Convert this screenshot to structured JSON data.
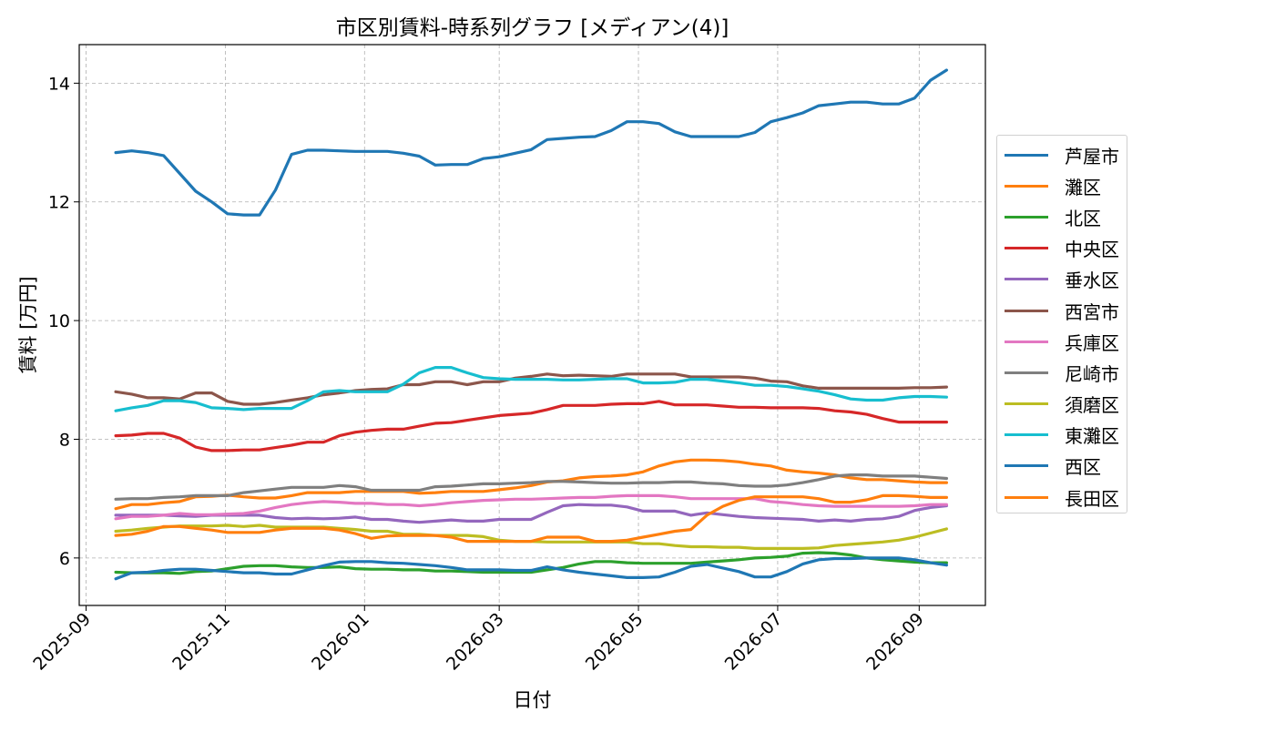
{
  "chart_data": {
    "type": "line",
    "title": "市区別賃料-時系列グラフ [メディアン(4)]",
    "xlabel": "日付",
    "ylabel": "賃料 [万円]",
    "xlim": [
      "2025-08-29",
      "2026-09-30"
    ],
    "ylim": [
      5.2,
      14.65
    ],
    "xticks": [
      "2025-09",
      "2025-11",
      "2026-01",
      "2026-03",
      "2026-05",
      "2026-07",
      "2026-09"
    ],
    "yticks": [
      6,
      8,
      10,
      12,
      14
    ],
    "grid": true,
    "legend_position": "right",
    "x": [
      "2025-09-14",
      "2025-09-21",
      "2025-09-28",
      "2025-10-05",
      "2025-10-12",
      "2025-10-19",
      "2025-10-26",
      "2025-11-02",
      "2025-11-09",
      "2025-11-16",
      "2025-11-23",
      "2025-11-30",
      "2025-12-07",
      "2025-12-14",
      "2025-12-21",
      "2025-12-28",
      "2026-01-04",
      "2026-01-11",
      "2026-01-18",
      "2026-01-25",
      "2026-02-01",
      "2026-02-08",
      "2026-02-15",
      "2026-02-22",
      "2026-03-01",
      "2026-03-08",
      "2026-03-15",
      "2026-03-22",
      "2026-03-29",
      "2026-04-05",
      "2026-04-12",
      "2026-04-19",
      "2026-04-26",
      "2026-05-03",
      "2026-05-10",
      "2026-05-17",
      "2026-05-24",
      "2026-05-31",
      "2026-06-07",
      "2026-06-14",
      "2026-06-21",
      "2026-06-28",
      "2026-07-05",
      "2026-07-12",
      "2026-07-19",
      "2026-07-26",
      "2026-08-02",
      "2026-08-09",
      "2026-08-16",
      "2026-08-23",
      "2026-08-30",
      "2026-09-06",
      "2026-09-13"
    ],
    "series": [
      {
        "name": "芦屋市",
        "color": "#1f77b4",
        "values": [
          12.83,
          12.86,
          12.83,
          12.78,
          12.48,
          12.18,
          12.0,
          11.8,
          11.78,
          11.78,
          12.2,
          12.8,
          12.87,
          12.87,
          12.86,
          12.85,
          12.85,
          12.85,
          12.82,
          12.77,
          12.62,
          12.63,
          12.63,
          12.73,
          12.76,
          12.82,
          12.88,
          13.05,
          13.07,
          13.09,
          13.1,
          13.2,
          13.35,
          13.35,
          13.32,
          13.18,
          13.1,
          13.1,
          13.1,
          13.1,
          13.17,
          13.35,
          13.42,
          13.5,
          13.62,
          13.65,
          13.68,
          13.68,
          13.65,
          13.65,
          13.75,
          14.05,
          14.22
        ]
      },
      {
        "name": "灘区",
        "color": "#ff7f0e",
        "values": [
          6.83,
          6.9,
          6.9,
          6.93,
          6.95,
          7.03,
          7.04,
          7.06,
          7.03,
          7.01,
          7.01,
          7.05,
          7.1,
          7.1,
          7.1,
          7.12,
          7.12,
          7.12,
          7.12,
          7.09,
          7.1,
          7.12,
          7.12,
          7.12,
          7.15,
          7.18,
          7.22,
          7.28,
          7.3,
          7.35,
          7.37,
          7.38,
          7.4,
          7.45,
          7.55,
          7.62,
          7.65,
          7.65,
          7.64,
          7.62,
          7.58,
          7.55,
          7.48,
          7.45,
          7.43,
          7.4,
          7.35,
          7.32,
          7.32,
          7.3,
          7.28,
          7.27,
          7.27
        ]
      },
      {
        "name": "北区",
        "color": "#2ca02c",
        "values": [
          5.76,
          5.75,
          5.75,
          5.75,
          5.74,
          5.77,
          5.78,
          5.82,
          5.86,
          5.87,
          5.87,
          5.85,
          5.84,
          5.84,
          5.85,
          5.82,
          5.81,
          5.81,
          5.8,
          5.8,
          5.78,
          5.78,
          5.77,
          5.76,
          5.76,
          5.76,
          5.76,
          5.8,
          5.84,
          5.9,
          5.94,
          5.94,
          5.92,
          5.91,
          5.91,
          5.91,
          5.91,
          5.93,
          5.95,
          5.97,
          6.0,
          6.01,
          6.03,
          6.08,
          6.09,
          6.08,
          6.05,
          6.0,
          5.97,
          5.95,
          5.93,
          5.92,
          5.92
        ]
      },
      {
        "name": "中央区",
        "color": "#d62728",
        "values": [
          8.06,
          8.07,
          8.1,
          8.1,
          8.02,
          7.87,
          7.81,
          7.81,
          7.82,
          7.82,
          7.86,
          7.9,
          7.95,
          7.95,
          8.06,
          8.12,
          8.15,
          8.17,
          8.17,
          8.22,
          8.27,
          8.28,
          8.32,
          8.36,
          8.4,
          8.42,
          8.44,
          8.5,
          8.57,
          8.57,
          8.57,
          8.59,
          8.6,
          8.6,
          8.64,
          8.58,
          8.58,
          8.58,
          8.56,
          8.54,
          8.54,
          8.53,
          8.53,
          8.53,
          8.52,
          8.48,
          8.46,
          8.42,
          8.35,
          8.29,
          8.29,
          8.29,
          8.29
        ]
      },
      {
        "name": "垂水区",
        "color": "#9467bd",
        "values": [
          6.72,
          6.72,
          6.72,
          6.72,
          6.71,
          6.7,
          6.72,
          6.72,
          6.72,
          6.72,
          6.68,
          6.66,
          6.67,
          6.66,
          6.67,
          6.69,
          6.65,
          6.65,
          6.62,
          6.6,
          6.62,
          6.64,
          6.62,
          6.62,
          6.65,
          6.65,
          6.65,
          6.77,
          6.88,
          6.9,
          6.89,
          6.89,
          6.86,
          6.79,
          6.79,
          6.79,
          6.72,
          6.76,
          6.73,
          6.7,
          6.68,
          6.67,
          6.66,
          6.65,
          6.62,
          6.64,
          6.62,
          6.65,
          6.66,
          6.7,
          6.8,
          6.85,
          6.88
        ]
      },
      {
        "name": "西宮市",
        "color": "#8c564b",
        "values": [
          8.8,
          8.76,
          8.7,
          8.7,
          8.68,
          8.78,
          8.78,
          8.64,
          8.59,
          8.59,
          8.62,
          8.66,
          8.7,
          8.75,
          8.78,
          8.82,
          8.84,
          8.85,
          8.92,
          8.92,
          8.97,
          8.97,
          8.92,
          8.97,
          8.97,
          9.03,
          9.06,
          9.1,
          9.07,
          9.08,
          9.07,
          9.06,
          9.1,
          9.1,
          9.1,
          9.1,
          9.05,
          9.05,
          9.05,
          9.05,
          9.03,
          8.98,
          8.97,
          8.9,
          8.86,
          8.86,
          8.86,
          8.86,
          8.86,
          8.86,
          8.87,
          8.87,
          8.88
        ]
      },
      {
        "name": "兵庫区",
        "color": "#e377c2",
        "values": [
          6.66,
          6.7,
          6.7,
          6.72,
          6.75,
          6.73,
          6.73,
          6.74,
          6.75,
          6.79,
          6.85,
          6.9,
          6.93,
          6.95,
          6.94,
          6.92,
          6.92,
          6.9,
          6.9,
          6.88,
          6.9,
          6.93,
          6.95,
          6.97,
          6.98,
          6.99,
          6.99,
          7.0,
          7.01,
          7.02,
          7.02,
          7.04,
          7.05,
          7.05,
          7.05,
          7.03,
          7.0,
          7.0,
          7.0,
          7.0,
          7.0,
          6.95,
          6.93,
          6.9,
          6.88,
          6.87,
          6.87,
          6.87,
          6.87,
          6.87,
          6.88,
          6.9,
          6.9
        ]
      },
      {
        "name": "尼崎市",
        "color": "#7f7f7f",
        "values": [
          6.99,
          7.0,
          7.0,
          7.02,
          7.03,
          7.05,
          7.05,
          7.05,
          7.1,
          7.13,
          7.16,
          7.19,
          7.19,
          7.19,
          7.22,
          7.2,
          7.14,
          7.14,
          7.14,
          7.14,
          7.2,
          7.21,
          7.23,
          7.25,
          7.25,
          7.26,
          7.27,
          7.29,
          7.29,
          7.28,
          7.27,
          7.26,
          7.26,
          7.27,
          7.27,
          7.28,
          7.28,
          7.26,
          7.25,
          7.22,
          7.21,
          7.21,
          7.23,
          7.27,
          7.32,
          7.38,
          7.4,
          7.4,
          7.38,
          7.38,
          7.38,
          7.36,
          7.34
        ]
      },
      {
        "name": "須磨区",
        "color": "#bcbd22",
        "values": [
          6.45,
          6.47,
          6.5,
          6.52,
          6.54,
          6.54,
          6.54,
          6.55,
          6.53,
          6.55,
          6.52,
          6.52,
          6.52,
          6.52,
          6.5,
          6.48,
          6.45,
          6.45,
          6.4,
          6.4,
          6.38,
          6.38,
          6.38,
          6.36,
          6.3,
          6.28,
          6.28,
          6.27,
          6.27,
          6.27,
          6.27,
          6.27,
          6.27,
          6.24,
          6.24,
          6.21,
          6.19,
          6.19,
          6.18,
          6.18,
          6.16,
          6.16,
          6.16,
          6.16,
          6.17,
          6.21,
          6.23,
          6.25,
          6.27,
          6.3,
          6.35,
          6.42,
          6.49
        ]
      },
      {
        "name": "東灘区",
        "color": "#17becf",
        "values": [
          8.48,
          8.53,
          8.57,
          8.65,
          8.65,
          8.62,
          8.53,
          8.52,
          8.5,
          8.52,
          8.52,
          8.52,
          8.65,
          8.8,
          8.82,
          8.8,
          8.8,
          8.8,
          8.93,
          9.12,
          9.21,
          9.21,
          9.12,
          9.04,
          9.02,
          9.01,
          9.01,
          9.01,
          9.0,
          9.0,
          9.01,
          9.02,
          9.02,
          8.95,
          8.95,
          8.96,
          9.01,
          9.01,
          8.98,
          8.95,
          8.91,
          8.91,
          8.89,
          8.85,
          8.81,
          8.75,
          8.68,
          8.66,
          8.66,
          8.7,
          8.72,
          8.72,
          8.71
        ]
      },
      {
        "name": "西区",
        "color": "#1f77b4",
        "values": [
          5.65,
          5.75,
          5.76,
          5.79,
          5.81,
          5.81,
          5.79,
          5.77,
          5.75,
          5.75,
          5.73,
          5.73,
          5.8,
          5.87,
          5.93,
          5.94,
          5.94,
          5.92,
          5.91,
          5.89,
          5.87,
          5.84,
          5.8,
          5.8,
          5.8,
          5.79,
          5.79,
          5.85,
          5.8,
          5.76,
          5.73,
          5.7,
          5.67,
          5.67,
          5.68,
          5.76,
          5.86,
          5.89,
          5.83,
          5.77,
          5.68,
          5.68,
          5.77,
          5.9,
          5.97,
          5.99,
          5.99,
          6.0,
          6.0,
          6.0,
          5.97,
          5.92,
          5.88
        ]
      },
      {
        "name": "長田区",
        "color": "#ff7f0e",
        "values": [
          6.38,
          6.4,
          6.45,
          6.53,
          6.53,
          6.5,
          6.47,
          6.43,
          6.43,
          6.43,
          6.47,
          6.5,
          6.5,
          6.5,
          6.47,
          6.41,
          6.33,
          6.37,
          6.38,
          6.38,
          6.38,
          6.35,
          6.28,
          6.28,
          6.28,
          6.28,
          6.28,
          6.35,
          6.35,
          6.35,
          6.28,
          6.28,
          6.3,
          6.35,
          6.4,
          6.45,
          6.48,
          6.72,
          6.87,
          6.97,
          7.03,
          7.03,
          7.03,
          7.03,
          7.0,
          6.94,
          6.94,
          6.98,
          7.05,
          7.05,
          7.04,
          7.02,
          7.02
        ]
      }
    ]
  }
}
